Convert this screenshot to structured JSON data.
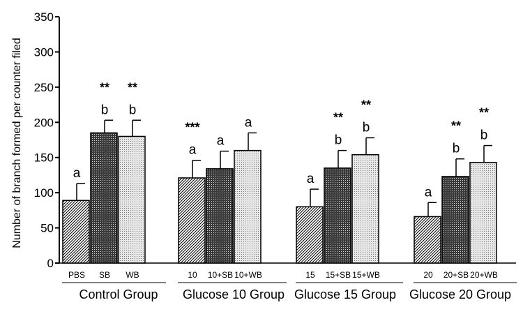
{
  "chart_data": {
    "type": "bar",
    "title": "",
    "ylabel": "Number of branch formed per counter filed",
    "ylim": [
      0,
      350
    ],
    "yticks": [
      "0",
      "50",
      "100",
      "150",
      "200",
      "250",
      "300",
      "350"
    ],
    "groups": [
      {
        "label": "Control Group",
        "bars": [
          {
            "label": "PBS",
            "value": 89,
            "error": 24,
            "letter": "a",
            "stars": "",
            "pattern": "diagonal"
          },
          {
            "label": "SB",
            "value": 185,
            "error": 18,
            "letter": "b",
            "stars": "**",
            "pattern": "crosshatch"
          },
          {
            "label": "WB",
            "value": 180,
            "error": 23,
            "letter": "b",
            "stars": "**",
            "pattern": "dots"
          }
        ]
      },
      {
        "label": "Glucose 10  Group",
        "bars": [
          {
            "label": "10",
            "value": 121,
            "error": 25,
            "letter": "a",
            "stars": "***",
            "pattern": "diagonal"
          },
          {
            "label": "10+SB",
            "value": 134,
            "error": 25,
            "letter": "a",
            "stars": "",
            "pattern": "crosshatch"
          },
          {
            "label": "10+WB",
            "value": 160,
            "error": 25,
            "letter": "a",
            "stars": "",
            "pattern": "dots"
          }
        ]
      },
      {
        "label": "Glucose 15  Group",
        "bars": [
          {
            "label": "15",
            "value": 80,
            "error": 25,
            "letter": "a",
            "stars": "",
            "pattern": "diagonal"
          },
          {
            "label": "15+SB",
            "value": 135,
            "error": 25,
            "letter": "b",
            "stars": "**",
            "pattern": "crosshatch"
          },
          {
            "label": "15+WB",
            "value": 154,
            "error": 24,
            "letter": "b",
            "stars": "**",
            "pattern": "dots"
          }
        ]
      },
      {
        "label": "Glucose 20  Group",
        "bars": [
          {
            "label": "20",
            "value": 66,
            "error": 20,
            "letter": "a",
            "stars": "",
            "pattern": "diagonal"
          },
          {
            "label": "20+SB",
            "value": 123,
            "error": 25,
            "letter": "b",
            "stars": "**",
            "pattern": "crosshatch"
          },
          {
            "label": "20+WB",
            "value": 143,
            "error": 24,
            "letter": "b",
            "stars": "**",
            "pattern": "dots"
          }
        ]
      }
    ],
    "colors": {
      "bar_stroke": "#000000",
      "pattern_ink": "#000000",
      "background": "#ffffff"
    },
    "grid": false,
    "legend": "none"
  }
}
